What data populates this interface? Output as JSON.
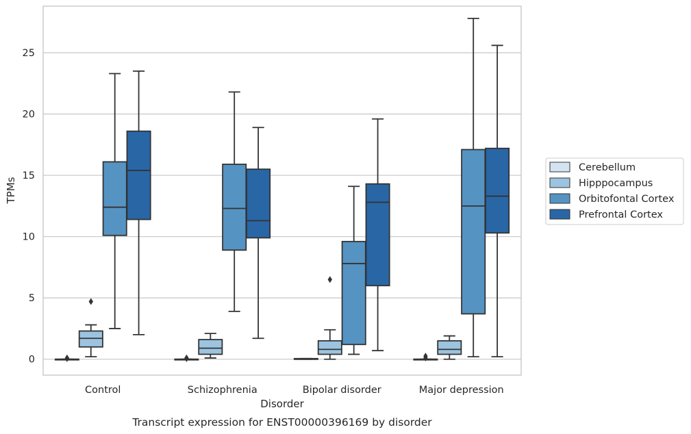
{
  "caption": "Transcript expression for ENST00000396169 by disorder",
  "chart_data": {
    "type": "box",
    "xlabel": "Disorder",
    "ylabel": "TPMs",
    "ylim": [
      -1.3,
      28.8
    ],
    "yticks": [
      0,
      5,
      10,
      15,
      20,
      25
    ],
    "grid": "horizontal",
    "legend_placement": "right",
    "categories": [
      "Control",
      "Schizophrenia",
      "Bipolar disorder",
      "Major depression"
    ],
    "series": [
      {
        "name": "Cerebellum",
        "color": "#d4e3f2",
        "boxes": [
          {
            "q1": 0,
            "median": 0,
            "q3": 0,
            "whisker_low": 0,
            "whisker_high": 0,
            "outliers": [
              0.1,
              0.05
            ]
          },
          {
            "q1": 0,
            "median": 0,
            "q3": 0,
            "whisker_low": 0,
            "whisker_high": 0,
            "outliers": [
              0.1,
              0.05
            ]
          },
          {
            "q1": 0,
            "median": 0,
            "q3": 0.05,
            "whisker_low": 0,
            "whisker_high": 0.05,
            "outliers": []
          },
          {
            "q1": 0,
            "median": 0,
            "q3": 0,
            "whisker_low": 0,
            "whisker_high": 0,
            "outliers": [
              0.25,
              0.1
            ]
          }
        ]
      },
      {
        "name": "Hipppocampus",
        "color": "#9cc4e0",
        "boxes": [
          {
            "q1": 1.0,
            "median": 1.7,
            "q3": 2.3,
            "whisker_low": 0.2,
            "whisker_high": 2.8,
            "outliers": [
              4.7
            ]
          },
          {
            "q1": 0.4,
            "median": 0.9,
            "q3": 1.6,
            "whisker_low": 0.1,
            "whisker_high": 2.1,
            "outliers": []
          },
          {
            "q1": 0.4,
            "median": 0.8,
            "q3": 1.5,
            "whisker_low": 0.0,
            "whisker_high": 2.4,
            "outliers": [
              6.5
            ]
          },
          {
            "q1": 0.4,
            "median": 0.8,
            "q3": 1.5,
            "whisker_low": 0.0,
            "whisker_high": 1.9,
            "outliers": []
          }
        ]
      },
      {
        "name": "Orbitofontal Cortex",
        "color": "#5593c2",
        "boxes": [
          {
            "q1": 10.1,
            "median": 12.4,
            "q3": 16.1,
            "whisker_low": 2.5,
            "whisker_high": 23.3,
            "outliers": []
          },
          {
            "q1": 8.9,
            "median": 12.3,
            "q3": 15.9,
            "whisker_low": 3.9,
            "whisker_high": 21.8,
            "outliers": []
          },
          {
            "q1": 1.2,
            "median": 7.8,
            "q3": 9.6,
            "whisker_low": 0.4,
            "whisker_high": 14.1,
            "outliers": []
          },
          {
            "q1": 3.7,
            "median": 12.5,
            "q3": 17.1,
            "whisker_low": 0.2,
            "whisker_high": 27.8,
            "outliers": []
          }
        ]
      },
      {
        "name": "Prefrontal Cortex",
        "color": "#2966a5",
        "boxes": [
          {
            "q1": 11.4,
            "median": 15.4,
            "q3": 18.6,
            "whisker_low": 2.0,
            "whisker_high": 23.5,
            "outliers": []
          },
          {
            "q1": 9.9,
            "median": 11.3,
            "q3": 15.5,
            "whisker_low": 1.7,
            "whisker_high": 18.9,
            "outliers": []
          },
          {
            "q1": 6.0,
            "median": 12.8,
            "q3": 14.3,
            "whisker_low": 0.7,
            "whisker_high": 19.6,
            "outliers": []
          },
          {
            "q1": 10.3,
            "median": 13.3,
            "q3": 17.2,
            "whisker_low": 0.2,
            "whisker_high": 25.6,
            "outliers": []
          }
        ]
      }
    ]
  }
}
